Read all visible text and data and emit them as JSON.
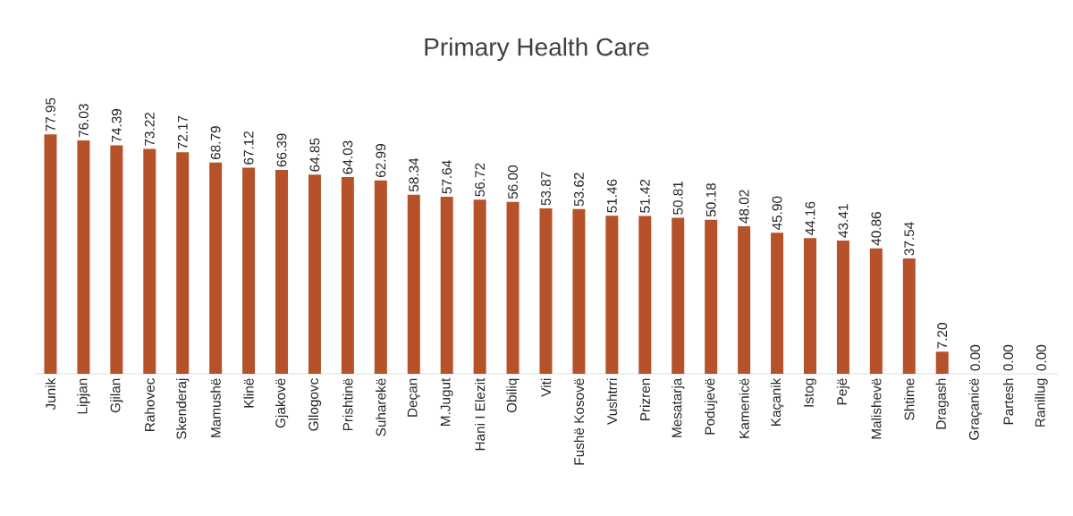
{
  "chart_data": {
    "type": "bar",
    "title": "Primary Health Care",
    "categories": [
      "Junik",
      "Lipjan",
      "Gjilan",
      "Rahovec",
      "Skenderaj",
      "Mamushë",
      "Klinë",
      "Gjakovë",
      "Gllogovc",
      "Prishtinë",
      "Suharekë",
      "Deçan",
      "M.Jugut",
      "Hani I Elezit",
      "Obiliq",
      "Viti",
      "Fushë Kosovë",
      "Vushtrri",
      "Prizren",
      "Mesatarja",
      "Podujevë",
      "Kamenicë",
      "Kaçanik",
      "Istog",
      "Pejë",
      "Malishevë",
      "Shtime",
      "Dragash",
      "Graçanicë",
      "Partesh",
      "Ranillug"
    ],
    "values": [
      77.95,
      76.03,
      74.39,
      73.22,
      72.17,
      68.79,
      67.12,
      66.39,
      64.85,
      64.03,
      62.99,
      58.34,
      57.64,
      56.72,
      56.0,
      53.87,
      53.62,
      51.46,
      51.42,
      50.81,
      50.18,
      48.02,
      45.9,
      44.16,
      43.41,
      40.86,
      37.54,
      7.2,
      0.0,
      0.0,
      0.0
    ],
    "value_labels": [
      "77.95",
      "76.03",
      "74.39",
      "73.22",
      "72.17",
      "68.79",
      "67.12",
      "66.39",
      "64.85",
      "64.03",
      "62.99",
      "58.34",
      "57.64",
      "56.72",
      "56.00",
      "53.87",
      "53.62",
      "51.46",
      "51.42",
      "50.81",
      "50.18",
      "48.02",
      "45.90",
      "44.16",
      "43.41",
      "40.86",
      "37.54",
      "7.20",
      "0.00",
      "0.00",
      "0.00"
    ],
    "color": "#b5522a"
  }
}
